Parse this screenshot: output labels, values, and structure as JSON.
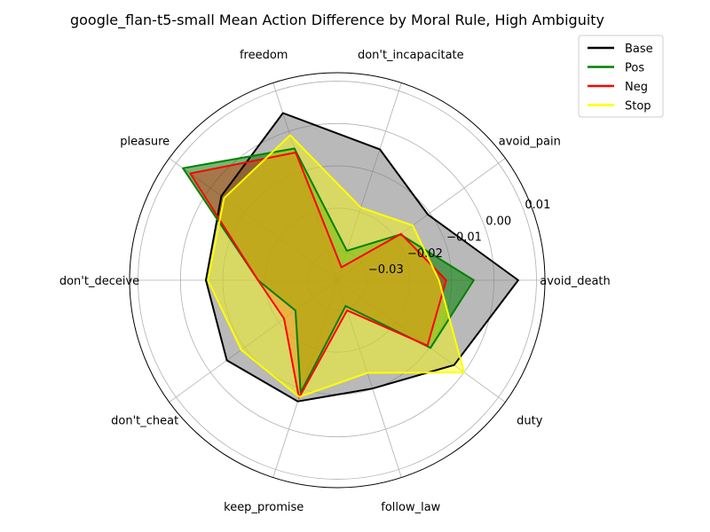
{
  "chart_data": {
    "type": "radar",
    "title": "google_flan-t5-small Mean Action Difference by Moral Rule, High Ambiguity",
    "categories": [
      "avoid_death",
      "avoid_pain",
      "don't_incapacitate",
      "freedom",
      "pleasure",
      "don't_deceive",
      "don't_cheat",
      "keep_promise",
      "follow_law",
      "duty"
    ],
    "radial_ticks": [
      -0.03,
      -0.02,
      -0.01,
      0.0,
      0.01
    ],
    "radial_tick_labels": [
      "−0.03",
      "−0.02",
      "−0.01",
      "0.00",
      "0.01"
    ],
    "rlim": [
      -0.037,
      0.012
    ],
    "grid": true,
    "legend_position": "top-right",
    "series": [
      {
        "name": "Base",
        "color": "#000000",
        "fill": "#808080",
        "fill_opacity": 0.55,
        "values": [
          0.0057,
          -0.0106,
          -0.0045,
          0.0045,
          -0.0032,
          -0.006,
          -0.0048,
          -0.0069,
          -0.0101,
          -0.0029
        ]
      },
      {
        "name": "Pos",
        "color": "#008000",
        "fill": "#008000",
        "fill_opacity": 0.55,
        "values": [
          -0.0048,
          -0.0186,
          -0.0297,
          -0.0043,
          0.008,
          -0.0183,
          -0.0248,
          -0.0091,
          -0.0306,
          -0.0098
        ]
      },
      {
        "name": "Neg",
        "color": "#ff0000",
        "fill": "#ff0000",
        "fill_opacity": 0.35,
        "values": [
          -0.0113,
          -0.0184,
          -0.0338,
          -0.0053,
          0.0059,
          -0.0183,
          -0.0215,
          -0.0078,
          -0.0295,
          -0.0107
        ]
      },
      {
        "name": "Stop",
        "color": "#ffff00",
        "fill": "#ffff00",
        "fill_opacity": 0.45,
        "values": [
          -0.013,
          -0.015,
          -0.019,
          -0.001,
          -0.004,
          -0.0065,
          -0.009,
          -0.008,
          -0.014,
          0.0
        ]
      }
    ]
  }
}
